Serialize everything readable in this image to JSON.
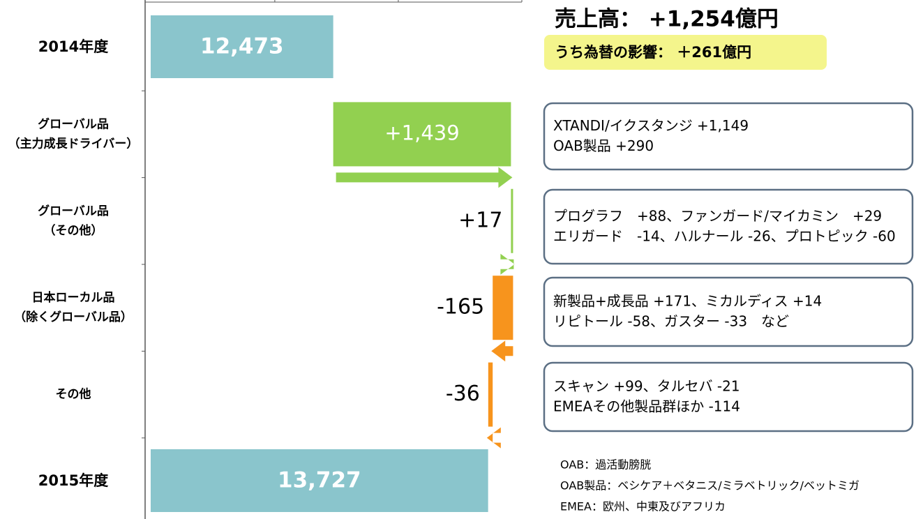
{
  "chart_data": {
    "type": "waterfall",
    "title": "売上高： +1,254億円",
    "subtitle": "うち為替の影響： ＋261億円",
    "categories": [
      [
        "2014年度"
      ],
      [
        "グローバル品",
        "（主力成長ドライバー）"
      ],
      [
        "グローバル品",
        "（その他）"
      ],
      [
        "日本ローカル品",
        "（除くグローバル品）"
      ],
      [
        "その他"
      ],
      [
        "2015年度"
      ]
    ],
    "values": [
      12473,
      1439,
      17,
      -165,
      -36,
      13727
    ],
    "value_labels": [
      "12,473",
      "+1,439",
      "+17",
      "-165",
      "-36",
      "13,727"
    ],
    "measure": [
      "absolute",
      "relative",
      "relative",
      "relative",
      "relative",
      "absolute"
    ],
    "colors": [
      "#8ac5cc",
      "#92d050",
      "#92d050",
      "#f7941d",
      "#f7941d",
      "#8ac5cc"
    ],
    "xlim": [
      10950,
      14000
    ],
    "xticks": [
      12000,
      13000,
      14000
    ],
    "notes": [
      [
        "XTANDI/イクスタンジ +1,149",
        "OAB製品 +290"
      ],
      [
        "プログラフ　+88、ファンガード/マイカミン　+29",
        "エリガード　-14、ハルナール -26、プロトピック -60"
      ],
      [
        "新製品+成長品 +171、ミカルディス +14",
        "リピトール -58、ガスター -33　など"
      ],
      [
        "スキャン +99、タルセバ -21",
        "EMEAその他製品群ほか -114"
      ]
    ],
    "footnotes": [
      "OAB：過活動膀胱",
      "OAB製品：ベシケア＋ベタニス/ミラベトリック/ベットミガ",
      "EMEA：欧州、中東及びアフリカ"
    ]
  }
}
